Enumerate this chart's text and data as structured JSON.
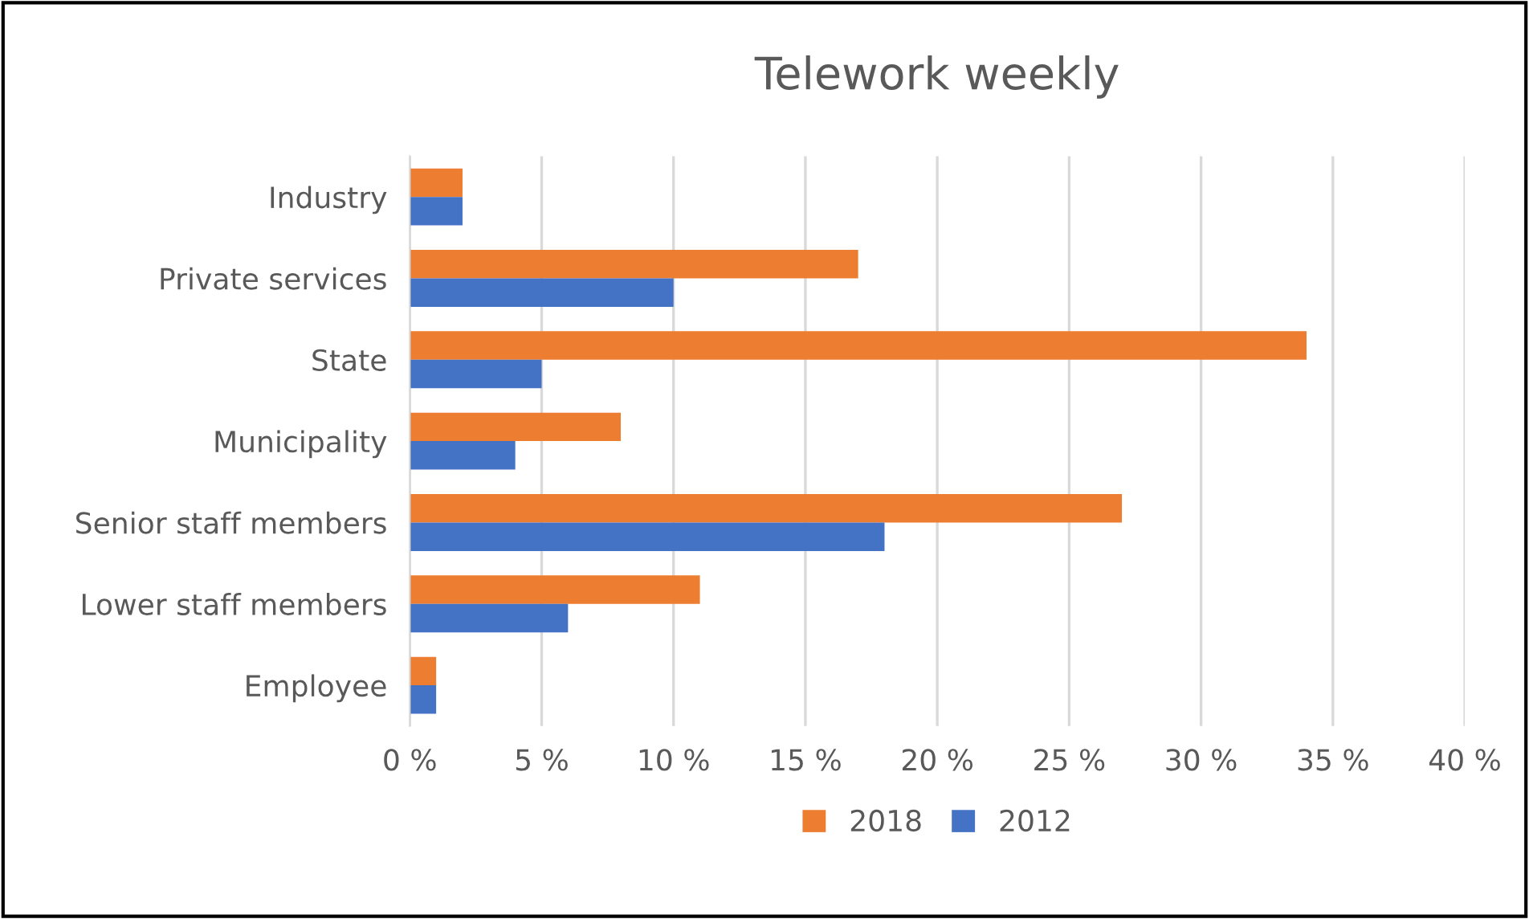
{
  "chart_data": {
    "type": "bar",
    "orientation": "horizontal",
    "title": "Telework weekly",
    "categories": [
      "Industry",
      "Private services",
      "State",
      "Municipality",
      "Senior staff members",
      "Lower staff members",
      "Employee"
    ],
    "series": [
      {
        "name": "2018",
        "color": "#ed7d31",
        "values": [
          2,
          17,
          34,
          8,
          27,
          11,
          1
        ]
      },
      {
        "name": "2012",
        "color": "#4472c4",
        "values": [
          2,
          10,
          5,
          4,
          18,
          6,
          1
        ]
      }
    ],
    "xlim": [
      0,
      40
    ],
    "xticks": [
      {
        "value": 0,
        "label": "0 %"
      },
      {
        "value": 5,
        "label": "5 %"
      },
      {
        "value": 10,
        "label": "10 %"
      },
      {
        "value": 15,
        "label": "15 %"
      },
      {
        "value": 20,
        "label": "20 %"
      },
      {
        "value": 25,
        "label": "25 %"
      },
      {
        "value": 30,
        "label": "30 %"
      },
      {
        "value": 35,
        "label": "35 %"
      },
      {
        "value": 40,
        "label": "40 %"
      }
    ],
    "grid": "x",
    "legend": "bottom"
  }
}
